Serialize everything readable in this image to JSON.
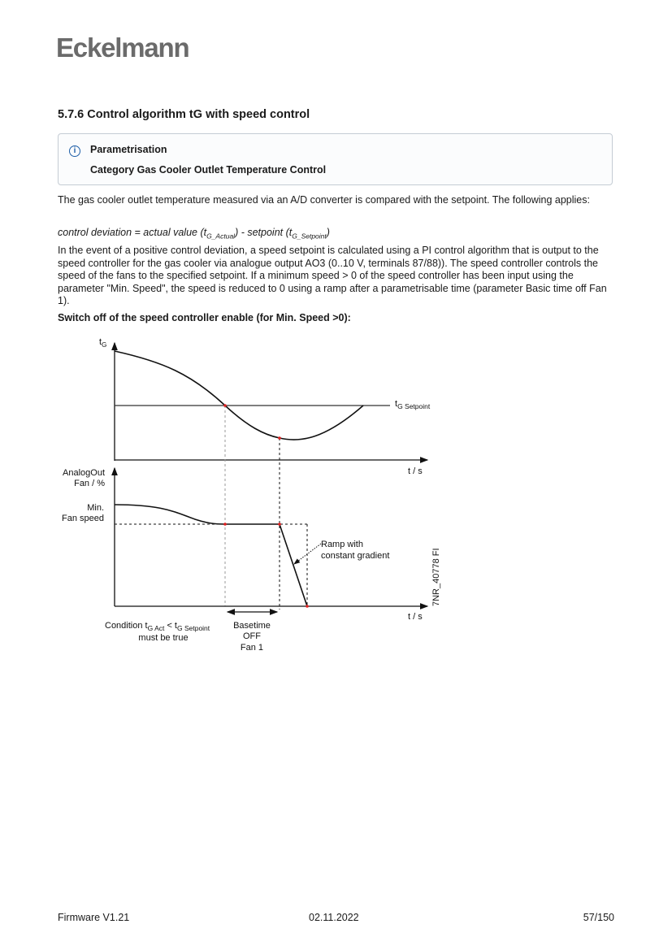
{
  "logo": "Eckelmann",
  "heading": "5.7.6 Control algorithm tG with speed control",
  "note": {
    "icon": "info-icon",
    "title": "Parametrisation",
    "subtitle": "Category Gas Cooler Outlet Temperature Control"
  },
  "body": {
    "p1": "The gas cooler outlet temperature measured via an A/D converter is compared with the setpoint. The following applies:",
    "formula": {
      "a": "control deviation = actual value (t",
      "a_sub": "G_Actual",
      "b": ") - setpoint (t",
      "b_sub": "G_Setpoint",
      "c": ")"
    },
    "p2": "In the event of a positive control deviation, a speed setpoint is calculated using a PI control algorithm that is output to the speed controller for the gas cooler via analogue output AO3 (0..10 V, terminals 87/88)). The speed controller controls the speed of the fans to the specified setpoint. If a minimum speed > 0 of the speed controller has been input using the parameter \"Min. Speed\", the speed is reduced to 0 using a ramp after a parametrisable time (parameter Basic time off Fan 1).",
    "figure_title": "Switch off of the speed controller enable (for Min. Speed >0):"
  },
  "diagram": {
    "top_y_label": "t",
    "top_y_label_sub": "G",
    "setpoint_label": "t",
    "setpoint_label_sub": "G Setpoint",
    "x_label_top": "t / s",
    "bottom_y_label_1": "AnalogOut",
    "bottom_y_label_2": "Fan / %",
    "min_label_1": "Min.",
    "min_label_2": "Fan speed",
    "ramp_label_1": "Ramp with",
    "ramp_label_2": "constant gradient",
    "x_label_bottom": "t / s",
    "condition_1a": "Condition t",
    "condition_1a_sub": "G Act",
    "condition_1b": " < t",
    "condition_1b_sub": "G Setpoint",
    "condition_2": "must be true",
    "basetime_1": "Basetime",
    "basetime_2": "OFF",
    "basetime_3": "Fan 1",
    "figure_id": "7NR_40778 FI",
    "marker_color": "#e02020"
  },
  "footer": {
    "firmware": "Firmware V1.21",
    "date": "02.11.2022",
    "page": "57/150"
  }
}
